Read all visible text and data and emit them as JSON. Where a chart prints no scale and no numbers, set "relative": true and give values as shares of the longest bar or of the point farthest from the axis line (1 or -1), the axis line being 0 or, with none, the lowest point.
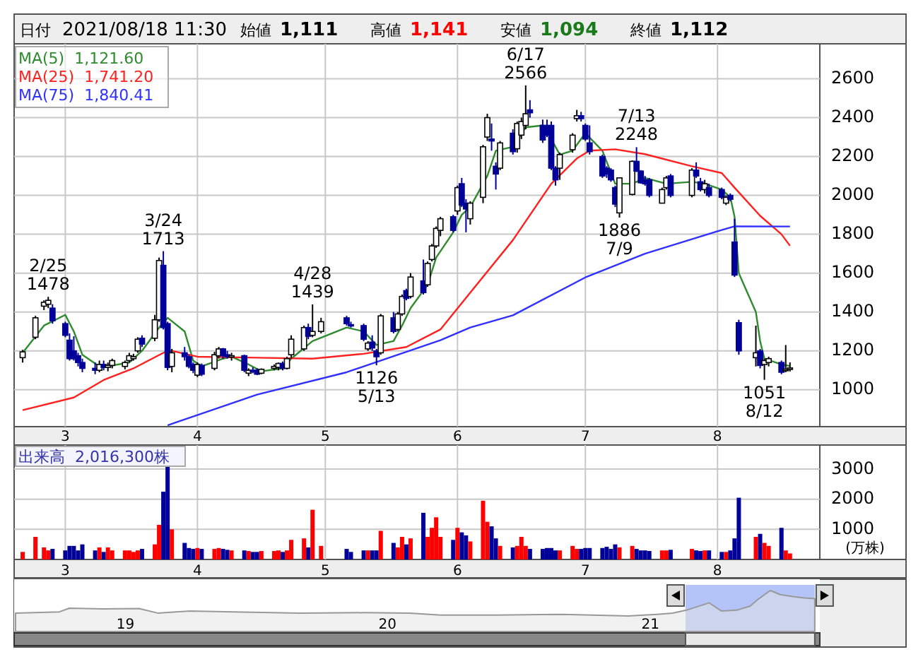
{
  "chart_data": [
    {
      "type": "other",
      "annotations": [
        "日付",
        "2021/08/18 11:30",
        "始値",
        "1,111",
        "高値",
        "1,141",
        "安値",
        "1,094",
        "終値",
        "1,112"
      ]
    },
    {
      "type": "candlestick",
      "xlim": [
        "2021-02-17",
        "2021-08-25"
      ],
      "ylim": [
        810,
        2780
      ],
      "yticks": [
        1000,
        1200,
        1400,
        1600,
        1800,
        2000,
        2200,
        2400,
        2600
      ],
      "xticks": [
        {
          "value": "2021-03-01",
          "label": "3"
        },
        {
          "value": "2021-04-01",
          "label": "4"
        },
        {
          "value": "2021-05-01",
          "label": "5"
        },
        {
          "value": "2021-06-01",
          "label": "6"
        },
        {
          "value": "2021-07-01",
          "label": "7"
        },
        {
          "value": "2021-08-01",
          "label": "8"
        }
      ],
      "grid": true,
      "legend": "top left",
      "x": [
        "2021-02-19",
        "2021-02-22",
        "2021-02-24",
        "2021-02-25",
        "2021-02-26",
        "2021-03-01",
        "2021-03-02",
        "2021-03-03",
        "2021-03-04",
        "2021-03-05",
        "2021-03-08",
        "2021-03-09",
        "2021-03-10",
        "2021-03-11",
        "2021-03-12",
        "2021-03-15",
        "2021-03-16",
        "2021-03-17",
        "2021-03-18",
        "2021-03-19",
        "2021-03-22",
        "2021-03-23",
        "2021-03-24",
        "2021-03-25",
        "2021-03-26",
        "2021-03-29",
        "2021-03-30",
        "2021-03-31",
        "2021-04-01",
        "2021-04-02",
        "2021-04-05",
        "2021-04-06",
        "2021-04-07",
        "2021-04-08",
        "2021-04-09",
        "2021-04-12",
        "2021-04-13",
        "2021-04-14",
        "2021-04-15",
        "2021-04-16",
        "2021-04-19",
        "2021-04-20",
        "2021-04-21",
        "2021-04-22",
        "2021-04-23",
        "2021-04-26",
        "2021-04-27",
        "2021-04-28",
        "2021-04-30",
        "2021-05-06",
        "2021-05-07",
        "2021-05-10",
        "2021-05-11",
        "2021-05-12",
        "2021-05-13",
        "2021-05-14",
        "2021-05-17",
        "2021-05-18",
        "2021-05-19",
        "2021-05-20",
        "2021-05-21",
        "2021-05-24",
        "2021-05-25",
        "2021-05-26",
        "2021-05-27",
        "2021-05-28",
        "2021-05-31",
        "2021-06-01",
        "2021-06-02",
        "2021-06-03",
        "2021-06-04",
        "2021-06-07",
        "2021-06-08",
        "2021-06-09",
        "2021-06-10",
        "2021-06-11",
        "2021-06-14",
        "2021-06-15",
        "2021-06-16",
        "2021-06-17",
        "2021-06-18",
        "2021-06-21",
        "2021-06-22",
        "2021-06-23",
        "2021-06-24",
        "2021-06-25",
        "2021-06-28",
        "2021-06-29",
        "2021-06-30",
        "2021-07-01",
        "2021-07-02",
        "2021-07-05",
        "2021-07-06",
        "2021-07-07",
        "2021-07-08",
        "2021-07-09",
        "2021-07-12",
        "2021-07-13",
        "2021-07-14",
        "2021-07-15",
        "2021-07-16",
        "2021-07-19",
        "2021-07-20",
        "2021-07-21",
        "2021-07-26",
        "2021-07-27",
        "2021-07-28",
        "2021-07-29",
        "2021-07-30",
        "2021-08-02",
        "2021-08-03",
        "2021-08-04",
        "2021-08-05",
        "2021-08-06",
        "2021-08-10",
        "2021-08-11",
        "2021-08-12",
        "2021-08-13",
        "2021-08-16",
        "2021-08-17",
        "2021-08-18"
      ],
      "ohlc": [
        [
          1165,
          1205,
          1140,
          1195
        ],
        [
          1270,
          1380,
          1260,
          1370
        ],
        [
          1430,
          1460,
          1410,
          1450
        ],
        [
          1440,
          1478,
          1420,
          1460
        ],
        [
          1420,
          1440,
          1340,
          1355
        ],
        [
          1340,
          1350,
          1270,
          1280
        ],
        [
          1255,
          1290,
          1150,
          1160
        ],
        [
          1200,
          1275,
          1150,
          1160
        ],
        [
          1175,
          1190,
          1120,
          1140
        ],
        [
          1140,
          1160,
          1090,
          1110
        ],
        [
          1110,
          1140,
          1080,
          1100
        ],
        [
          1100,
          1150,
          1090,
          1130
        ],
        [
          1130,
          1150,
          1100,
          1115
        ],
        [
          1115,
          1140,
          1095,
          1125
        ],
        [
          1125,
          1160,
          1110,
          1150
        ],
        [
          1120,
          1150,
          1105,
          1140
        ],
        [
          1150,
          1190,
          1140,
          1175
        ],
        [
          1160,
          1185,
          1150,
          1170
        ],
        [
          1200,
          1270,
          1190,
          1260
        ],
        [
          1265,
          1280,
          1220,
          1235
        ],
        [
          1265,
          1385,
          1250,
          1360
        ],
        [
          1360,
          1680,
          1350,
          1665
        ],
        [
          1640,
          1713,
          1310,
          1320
        ],
        [
          1340,
          1350,
          1100,
          1115
        ],
        [
          1120,
          1210,
          1090,
          1190
        ],
        [
          1190,
          1220,
          1150,
          1170
        ],
        [
          1170,
          1180,
          1110,
          1120
        ],
        [
          1130,
          1140,
          1085,
          1100
        ],
        [
          1075,
          1140,
          1065,
          1130
        ],
        [
          1125,
          1135,
          1070,
          1080
        ],
        [
          1110,
          1195,
          1100,
          1180
        ],
        [
          1175,
          1220,
          1160,
          1210
        ],
        [
          1210,
          1215,
          1160,
          1175
        ],
        [
          1180,
          1200,
          1160,
          1170
        ],
        [
          1170,
          1190,
          1150,
          1175
        ],
        [
          1175,
          1180,
          1090,
          1100
        ],
        [
          1085,
          1110,
          1070,
          1100
        ],
        [
          1100,
          1115,
          1085,
          1095
        ],
        [
          1100,
          1110,
          1075,
          1080
        ],
        [
          1085,
          1110,
          1080,
          1105
        ],
        [
          1110,
          1130,
          1100,
          1120
        ],
        [
          1115,
          1140,
          1100,
          1135
        ],
        [
          1135,
          1145,
          1100,
          1110
        ],
        [
          1110,
          1170,
          1105,
          1160
        ],
        [
          1180,
          1280,
          1160,
          1260
        ],
        [
          1210,
          1330,
          1200,
          1320
        ],
        [
          1320,
          1340,
          1260,
          1275
        ],
        [
          1280,
          1439,
          1270,
          1300
        ],
        [
          1300,
          1370,
          1290,
          1350
        ],
        [
          1370,
          1380,
          1330,
          1340
        ],
        [
          1335,
          1350,
          1320,
          1330
        ],
        [
          1330,
          1340,
          1250,
          1260
        ],
        [
          1210,
          1250,
          1200,
          1240
        ],
        [
          1245,
          1280,
          1200,
          1215
        ],
        [
          1200,
          1210,
          1126,
          1170
        ],
        [
          1190,
          1390,
          1180,
          1380
        ],
        [
          1370,
          1400,
          1290,
          1300
        ],
        [
          1310,
          1400,
          1300,
          1390
        ],
        [
          1390,
          1490,
          1380,
          1480
        ],
        [
          1510,
          1520,
          1460,
          1470
        ],
        [
          1480,
          1600,
          1470,
          1580
        ],
        [
          1560,
          1670,
          1490,
          1500
        ],
        [
          1540,
          1660,
          1530,
          1650
        ],
        [
          1670,
          1750,
          1660,
          1740
        ],
        [
          1740,
          1840,
          1730,
          1830
        ],
        [
          1820,
          1890,
          1790,
          1880
        ],
        [
          1890,
          1900,
          1810,
          1820
        ],
        [
          1920,
          2050,
          1900,
          2040
        ],
        [
          2060,
          2090,
          1940,
          1950
        ],
        [
          1960,
          1980,
          1810,
          1930
        ],
        [
          1880,
          1970,
          1850,
          1960
        ],
        [
          1990,
          2260,
          1960,
          2250
        ],
        [
          2300,
          2420,
          2280,
          2400
        ],
        [
          2290,
          2370,
          2230,
          2280
        ],
        [
          2150,
          2170,
          2030,
          2110
        ],
        [
          2140,
          2280,
          2130,
          2270
        ],
        [
          2320,
          2340,
          2210,
          2225
        ],
        [
          2240,
          2380,
          2220,
          2370
        ],
        [
          2310,
          2400,
          2290,
          2380
        ],
        [
          2360,
          2566,
          2340,
          2420
        ],
        [
          2440,
          2490,
          2400,
          2425
        ],
        [
          2360,
          2390,
          2270,
          2285
        ],
        [
          2360,
          2390,
          2300,
          2310
        ],
        [
          2360,
          2380,
          2130,
          2140
        ],
        [
          2140,
          2150,
          2050,
          2080
        ],
        [
          2140,
          2220,
          2080,
          2210
        ],
        [
          2235,
          2320,
          2220,
          2310
        ],
        [
          2395,
          2440,
          2380,
          2410
        ],
        [
          2410,
          2430,
          2380,
          2395
        ],
        [
          2360,
          2370,
          2280,
          2290
        ],
        [
          2270,
          2360,
          2210,
          2225
        ],
        [
          2200,
          2210,
          2090,
          2100
        ],
        [
          2140,
          2150,
          2090,
          2110
        ],
        [
          2130,
          2140,
          2070,
          2080
        ],
        [
          2040,
          2050,
          1940,
          1955
        ],
        [
          1910,
          2090,
          1886,
          2090
        ],
        [
          2005,
          2180,
          2000,
          2175
        ],
        [
          2175,
          2248,
          2120,
          2125
        ],
        [
          2125,
          2130,
          2060,
          2065
        ],
        [
          2080,
          2100,
          2050,
          2060
        ],
        [
          2080,
          2090,
          1990,
          2000
        ],
        [
          1960,
          2040,
          1960,
          2030
        ],
        [
          2040,
          2100,
          2030,
          2090
        ],
        [
          2100,
          2110,
          1990,
          2000
        ],
        [
          2000,
          2140,
          1990,
          2130
        ],
        [
          2130,
          2170,
          2090,
          2100
        ],
        [
          2070,
          2090,
          2020,
          2030
        ],
        [
          2030,
          2080,
          2010,
          2060
        ],
        [
          2040,
          2060,
          1990,
          2000
        ],
        [
          2030,
          2040,
          1980,
          1990
        ],
        [
          1960,
          2000,
          1950,
          1990
        ],
        [
          2000,
          2010,
          1970,
          1980
        ],
        [
          1760,
          1880,
          1580,
          1590
        ],
        [
          1345,
          1360,
          1180,
          1200
        ],
        [
          1165,
          1330,
          1120,
          1190
        ],
        [
          1200,
          1210,
          1110,
          1125
        ],
        [
          1130,
          1160,
          1051,
          1150
        ],
        [
          1140,
          1170,
          1120,
          1160
        ],
        [
          1140,
          1150,
          1080,
          1090
        ],
        [
          1100,
          1230,
          1090,
          1105
        ],
        [
          1111,
          1141,
          1094,
          1112
        ]
      ],
      "series": [
        {
          "type": "line",
          "name": "MA(5)  1,121.60",
          "color": "#2e8b2e",
          "x": [
            "2021-02-19",
            "2021-02-24",
            "2021-03-01",
            "2021-03-03",
            "2021-03-05",
            "2021-03-09",
            "2021-03-12",
            "2021-03-16",
            "2021-03-19",
            "2021-03-23",
            "2021-03-25",
            "2021-03-29",
            "2021-03-31",
            "2021-04-02",
            "2021-04-07",
            "2021-04-09",
            "2021-04-13",
            "2021-04-16",
            "2021-04-21",
            "2021-04-23",
            "2021-04-28",
            "2021-05-06",
            "2021-05-10",
            "2021-05-13",
            "2021-05-17",
            "2021-05-19",
            "2021-05-21",
            "2021-05-25",
            "2021-05-27",
            "2021-05-31",
            "2021-06-02",
            "2021-06-04",
            "2021-06-08",
            "2021-06-10",
            "2021-06-14",
            "2021-06-17",
            "2021-06-21",
            "2021-06-23",
            "2021-06-25",
            "2021-06-28",
            "2021-07-01",
            "2021-07-05",
            "2021-07-08",
            "2021-07-12",
            "2021-07-15",
            "2021-07-20",
            "2021-07-26",
            "2021-07-29",
            "2021-08-02",
            "2021-08-04",
            "2021-08-05",
            "2021-08-06",
            "2021-08-10",
            "2021-08-11",
            "2021-08-12",
            "2021-08-16",
            "2021-08-18"
          ],
          "values": [
            1190,
            1330,
            1385,
            1300,
            1180,
            1120,
            1125,
            1140,
            1200,
            1320,
            1370,
            1300,
            1150,
            1120,
            1160,
            1170,
            1130,
            1095,
            1110,
            1160,
            1250,
            1320,
            1300,
            1230,
            1250,
            1330,
            1420,
            1540,
            1680,
            1810,
            1900,
            1940,
            2100,
            2230,
            2250,
            2350,
            2360,
            2290,
            2210,
            2230,
            2320,
            2230,
            2060,
            2060,
            2090,
            2060,
            2070,
            2060,
            2030,
            1990,
            1890,
            1600,
            1400,
            1250,
            1160,
            1130,
            1122
          ]
        },
        {
          "type": "line",
          "name": "MA(25)  1,741.20",
          "color": "#ff2020",
          "x": [
            "2021-02-19",
            "2021-03-03",
            "2021-03-10",
            "2021-03-17",
            "2021-03-24",
            "2021-03-26",
            "2021-04-01",
            "2021-04-15",
            "2021-04-28",
            "2021-05-10",
            "2021-05-20",
            "2021-05-28",
            "2021-06-04",
            "2021-06-14",
            "2021-06-23",
            "2021-06-29",
            "2021-07-02",
            "2021-07-08",
            "2021-07-15",
            "2021-07-26",
            "2021-08-02",
            "2021-08-05",
            "2021-08-11",
            "2021-08-16",
            "2021-08-18"
          ],
          "values": [
            895,
            960,
            1050,
            1110,
            1190,
            1200,
            1170,
            1165,
            1160,
            1185,
            1220,
            1310,
            1500,
            1770,
            2060,
            2190,
            2230,
            2237,
            2212,
            2150,
            2115,
            2040,
            1895,
            1800,
            1741
          ]
        },
        {
          "type": "line",
          "name": "MA(75)  1,840.41",
          "color": "#3030ff",
          "x": [
            "2021-03-25",
            "2021-04-15",
            "2021-05-06",
            "2021-05-28",
            "2021-06-04",
            "2021-06-14",
            "2021-07-01",
            "2021-07-15",
            "2021-08-02",
            "2021-08-05",
            "2021-08-18"
          ],
          "values": [
            817,
            975,
            1090,
            1255,
            1320,
            1383,
            1578,
            1700,
            1822,
            1841,
            1840
          ]
        }
      ],
      "annotations": [
        {
          "text": "2/25\n1478",
          "x": "2021-02-25",
          "y": 1478
        },
        {
          "text": "3/24\n1713",
          "x": "2021-03-24",
          "y": 1713
        },
        {
          "text": "4/28\n1439",
          "x": "2021-04-28",
          "y": 1439
        },
        {
          "text": "6/17\n2566",
          "x": "2021-06-17",
          "y": 2566
        },
        {
          "text": "7/13\n2248",
          "x": "2021-07-13",
          "y": 2248
        },
        {
          "text": "1126\n5/13",
          "x": "2021-05-13",
          "y": 1126
        },
        {
          "text": "1886\n7/9",
          "x": "2021-07-09",
          "y": 1886
        },
        {
          "text": "1051\n8/12",
          "x": "2021-08-12",
          "y": 1051
        }
      ]
    },
    {
      "type": "bar",
      "title": "出来高  2,016,300株",
      "ylabel": "(万株)",
      "xlim": [
        "2021-02-17",
        "2021-08-25"
      ],
      "ylim": [
        0,
        3800
      ],
      "yticks": [
        1000,
        2000,
        3000
      ],
      "xticks": [
        {
          "value": "2021-03-01",
          "label": "3"
        },
        {
          "value": "2021-04-01",
          "label": "4"
        },
        {
          "value": "2021-05-01",
          "label": "5"
        },
        {
          "value": "2021-06-01",
          "label": "6"
        },
        {
          "value": "2021-07-01",
          "label": "7"
        },
        {
          "value": "2021-08-01",
          "label": "8"
        }
      ],
      "grid": true,
      "x": [
        "2021-02-19",
        "2021-02-22",
        "2021-02-24",
        "2021-02-25",
        "2021-02-26",
        "2021-03-01",
        "2021-03-02",
        "2021-03-03",
        "2021-03-04",
        "2021-03-05",
        "2021-03-08",
        "2021-03-09",
        "2021-03-10",
        "2021-03-11",
        "2021-03-12",
        "2021-03-15",
        "2021-03-16",
        "2021-03-17",
        "2021-03-18",
        "2021-03-19",
        "2021-03-22",
        "2021-03-23",
        "2021-03-24",
        "2021-03-25",
        "2021-03-26",
        "2021-03-29",
        "2021-03-30",
        "2021-03-31",
        "2021-04-01",
        "2021-04-02",
        "2021-04-05",
        "2021-04-06",
        "2021-04-07",
        "2021-04-08",
        "2021-04-09",
        "2021-04-12",
        "2021-04-13",
        "2021-04-14",
        "2021-04-15",
        "2021-04-16",
        "2021-04-19",
        "2021-04-20",
        "2021-04-21",
        "2021-04-22",
        "2021-04-23",
        "2021-04-26",
        "2021-04-27",
        "2021-04-28",
        "2021-04-30",
        "2021-05-06",
        "2021-05-07",
        "2021-05-10",
        "2021-05-11",
        "2021-05-12",
        "2021-05-13",
        "2021-05-14",
        "2021-05-17",
        "2021-05-18",
        "2021-05-19",
        "2021-05-20",
        "2021-05-21",
        "2021-05-24",
        "2021-05-25",
        "2021-05-26",
        "2021-05-27",
        "2021-05-28",
        "2021-05-31",
        "2021-06-01",
        "2021-06-02",
        "2021-06-03",
        "2021-06-04",
        "2021-06-07",
        "2021-06-08",
        "2021-06-09",
        "2021-06-10",
        "2021-06-11",
        "2021-06-14",
        "2021-06-15",
        "2021-06-16",
        "2021-06-17",
        "2021-06-18",
        "2021-06-21",
        "2021-06-22",
        "2021-06-23",
        "2021-06-24",
        "2021-06-25",
        "2021-06-28",
        "2021-06-29",
        "2021-06-30",
        "2021-07-01",
        "2021-07-02",
        "2021-07-05",
        "2021-07-06",
        "2021-07-07",
        "2021-07-08",
        "2021-07-09",
        "2021-07-12",
        "2021-07-13",
        "2021-07-14",
        "2021-07-15",
        "2021-07-16",
        "2021-07-19",
        "2021-07-20",
        "2021-07-21",
        "2021-07-26",
        "2021-07-27",
        "2021-07-28",
        "2021-07-29",
        "2021-07-30",
        "2021-08-02",
        "2021-08-03",
        "2021-08-04",
        "2021-08-05",
        "2021-08-06",
        "2021-08-10",
        "2021-08-11",
        "2021-08-12",
        "2021-08-13",
        "2021-08-16",
        "2021-08-17",
        "2021-08-18"
      ],
      "values": [
        250,
        750,
        400,
        300,
        350,
        300,
        450,
        450,
        300,
        500,
        300,
        400,
        250,
        400,
        300,
        300,
        300,
        250,
        300,
        350,
        500,
        1150,
        2250,
        3100,
        1000,
        550,
        380,
        350,
        380,
        350,
        350,
        380,
        350,
        320,
        300,
        300,
        280,
        250,
        250,
        280,
        280,
        300,
        250,
        300,
        650,
        700,
        400,
        1650,
        450,
        350,
        250,
        300,
        300,
        300,
        300,
        950,
        550,
        400,
        750,
        500,
        700,
        1550,
        750,
        1050,
        1400,
        750,
        650,
        1050,
        900,
        800,
        600,
        1950,
        1250,
        1100,
        700,
        450,
        400,
        450,
        750,
        450,
        350,
        350,
        380,
        380,
        300,
        300,
        450,
        350,
        350,
        380,
        380,
        380,
        420,
        350,
        500,
        400,
        450,
        350,
        300,
        300,
        280,
        300,
        300,
        320,
        350,
        300,
        280,
        300,
        300,
        250,
        250,
        300,
        700,
        2050,
        750,
        850,
        550,
        450,
        1050,
        300,
        200
      ],
      "colors": [
        "#ff0000",
        "#ff0000",
        "#ff0000",
        "#ff0000",
        "#000099",
        "#000099",
        "#000099",
        "#000099",
        "#000099",
        "#000099",
        "#000099",
        "#ff0000",
        "#000099",
        "#ff0000",
        "#ff0000",
        "#ff0000",
        "#ff0000",
        "#ff0000",
        "#ff0000",
        "#000099",
        "#ff0000",
        "#ff0000",
        "#000099",
        "#000099",
        "#ff0000",
        "#000099",
        "#000099",
        "#000099",
        "#ff0000",
        "#000099",
        "#ff0000",
        "#ff0000",
        "#000099",
        "#000099",
        "#ff0000",
        "#000099",
        "#ff0000",
        "#000099",
        "#000099",
        "#ff0000",
        "#ff0000",
        "#ff0000",
        "#000099",
        "#ff0000",
        "#ff0000",
        "#ff0000",
        "#000099",
        "#ff0000",
        "#ff0000",
        "#000099",
        "#000099",
        "#000099",
        "#ff0000",
        "#000099",
        "#000099",
        "#ff0000",
        "#000099",
        "#ff0000",
        "#ff0000",
        "#000099",
        "#ff0000",
        "#000099",
        "#ff0000",
        "#ff0000",
        "#ff0000",
        "#ff0000",
        "#000099",
        "#ff0000",
        "#000099",
        "#000099",
        "#ff0000",
        "#ff0000",
        "#ff0000",
        "#000099",
        "#000099",
        "#ff0000",
        "#000099",
        "#ff0000",
        "#ff0000",
        "#ff0000",
        "#000099",
        "#000099",
        "#000099",
        "#000099",
        "#000099",
        "#ff0000",
        "#ff0000",
        "#ff0000",
        "#000099",
        "#000099",
        "#000099",
        "#000099",
        "#000099",
        "#000099",
        "#000099",
        "#ff0000",
        "#ff0000",
        "#000099",
        "#000099",
        "#000099",
        "#000099",
        "#ff0000",
        "#ff0000",
        "#000099",
        "#ff0000",
        "#000099",
        "#000099",
        "#ff0000",
        "#000099",
        "#000099",
        "#ff0000",
        "#000099",
        "#000099",
        "#000099",
        "#ff0000",
        "#000099",
        "#ff0000",
        "#ff0000",
        "#000099",
        "#ff0000",
        "#ff0000"
      ]
    },
    {
      "type": "area",
      "relative": true,
      "tick_labels": "x",
      "color": "#999999",
      "xlim": [
        "2018-08-01",
        "2021-08-25"
      ],
      "xticks": [
        {
          "value": "2019-01-01",
          "label": "19"
        },
        {
          "value": "2020-01-01",
          "label": "20"
        },
        {
          "value": "2021-01-01",
          "label": "21"
        }
      ],
      "bands": [
        {
          "axis": "x",
          "from": "2021-02-19",
          "to": "2021-08-18",
          "color": "#b4c4f8"
        }
      ],
      "x": [
        "2018-08-01",
        "2018-10-01",
        "2018-10-15",
        "2018-12-01",
        "2019-01-20",
        "2019-02-15",
        "2019-04-01",
        "2019-06-01",
        "2019-09-01",
        "2019-12-01",
        "2020-02-01",
        "2020-03-15",
        "2020-06-01",
        "2020-09-01",
        "2020-12-01",
        "2021-01-10",
        "2021-02-01",
        "2021-02-20",
        "2021-03-24",
        "2021-04-10",
        "2021-05-01",
        "2021-05-20",
        "2021-06-01",
        "2021-06-17",
        "2021-07-01",
        "2021-07-20",
        "2021-08-04",
        "2021-08-18"
      ],
      "values": [
        0.45,
        0.48,
        0.57,
        0.55,
        0.56,
        0.45,
        0.5,
        0.48,
        0.45,
        0.46,
        0.45,
        0.4,
        0.4,
        0.42,
        0.38,
        0.42,
        0.45,
        0.52,
        0.7,
        0.5,
        0.52,
        0.62,
        0.8,
        1,
        0.9,
        0.85,
        0.82,
        0.8
      ]
    }
  ]
}
